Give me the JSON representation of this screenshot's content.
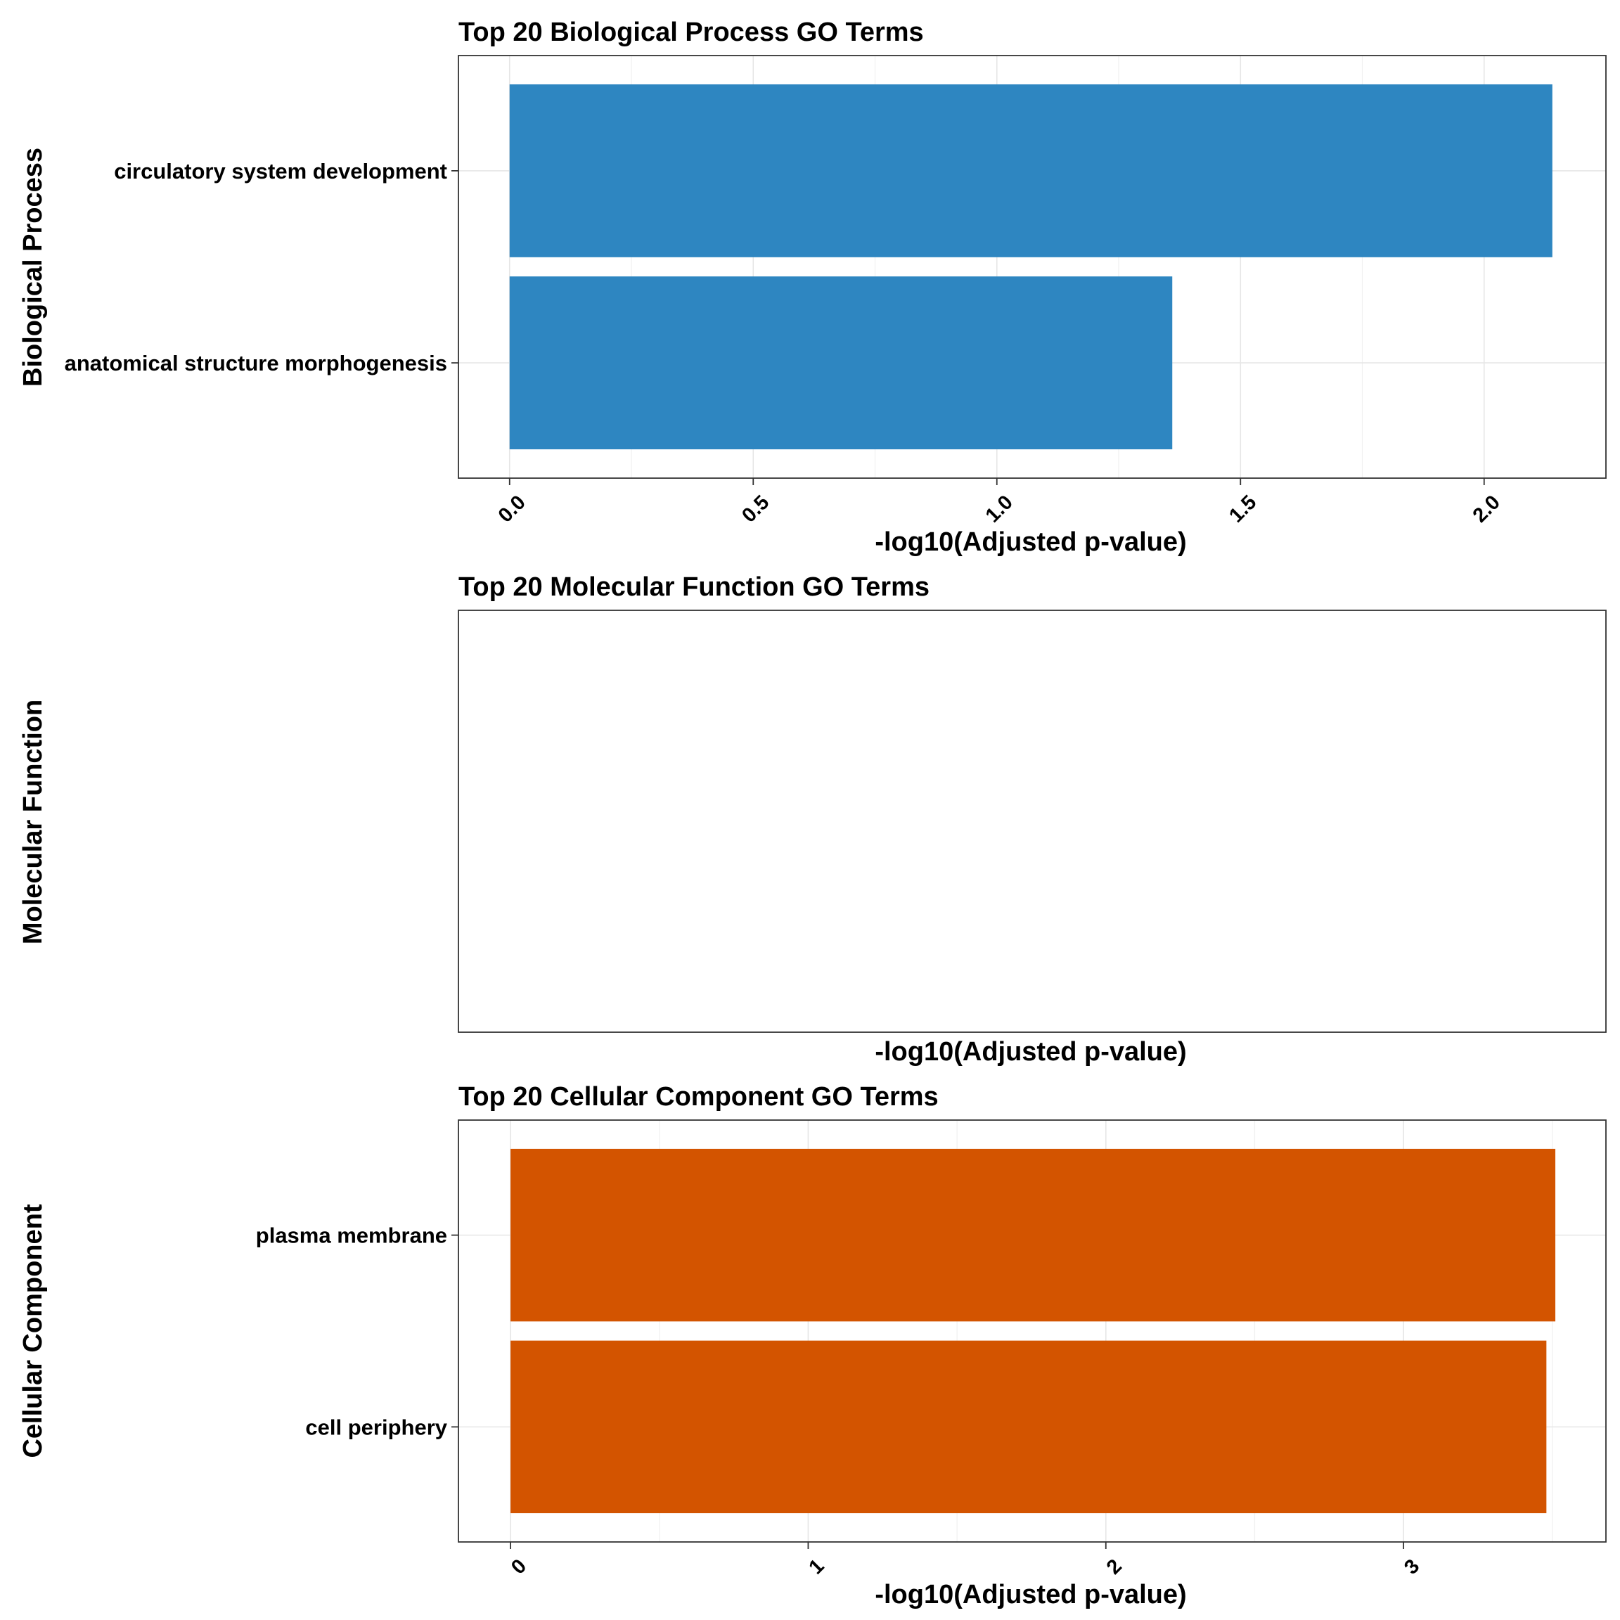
{
  "chart_data": [
    {
      "type": "bar",
      "orientation": "horizontal",
      "title": "Top 20 Biological Process GO Terms",
      "xlabel": "-log10(Adjusted p-value)",
      "ylabel": "Biological Process",
      "xlim": [
        -0.105,
        2.25
      ],
      "xticks": [
        "0.0",
        "0.5",
        "1.0",
        "1.5",
        "2.0"
      ],
      "xtick_values": [
        0,
        0.5,
        1.0,
        1.5,
        2.0
      ],
      "grid": true,
      "bar_color": "#2E86C1",
      "categories": [
        "circulatory system development",
        "anatomical structure morphogenesis"
      ],
      "values": [
        2.14,
        1.36
      ]
    },
    {
      "type": "bar",
      "orientation": "horizontal",
      "title": "Top 20 Molecular Function GO Terms",
      "xlabel": "-log10(Adjusted p-value)",
      "ylabel": "Molecular Function",
      "xticks": [],
      "xtick_values": [],
      "grid": false,
      "bar_color": "#2E86C1",
      "categories": [],
      "values": []
    },
    {
      "type": "bar",
      "orientation": "horizontal",
      "title": "Top 20 Cellular Component GO Terms",
      "xlabel": "-log10(Adjusted p-value)",
      "ylabel": "Cellular Component",
      "xlim": [
        -0.175,
        3.68
      ],
      "xticks": [
        "0",
        "1",
        "2",
        "3"
      ],
      "xtick_values": [
        0,
        1,
        2,
        3
      ],
      "grid": true,
      "bar_color": "#D35400",
      "categories": [
        "plasma membrane",
        "cell periphery"
      ],
      "values": [
        3.51,
        3.48
      ]
    }
  ]
}
